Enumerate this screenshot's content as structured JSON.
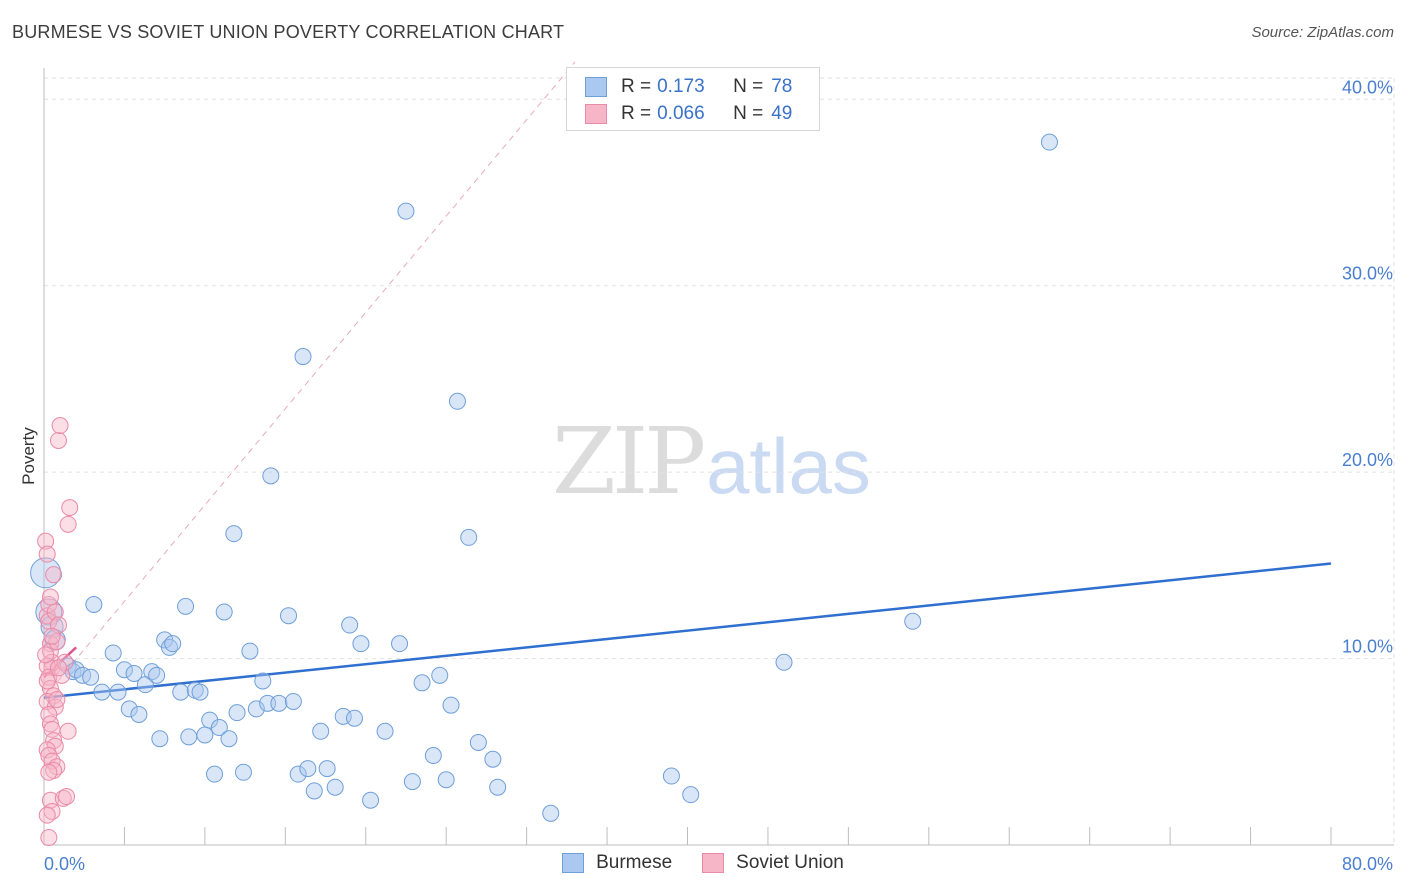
{
  "title": "BURMESE VS SOVIET UNION POVERTY CORRELATION CHART",
  "source": "Source: ZipAtlas.com",
  "watermark": {
    "zip": "ZIP",
    "atlas": "atlas"
  },
  "legend": {
    "rows": [
      {
        "r_label": "R =",
        "r_value": "0.173",
        "n_label": "N =",
        "n_value": "78"
      },
      {
        "r_label": "R =",
        "r_value": "0.066",
        "n_label": "N =",
        "n_value": "49"
      }
    ]
  },
  "bottom_legend": [
    "Burmese",
    "Soviet Union"
  ],
  "colors": {
    "burmese_fill": "#aac8f0",
    "burmese_stroke": "#6f9fd8",
    "burmese_line": "#2f6fcf",
    "soviet_fill": "#f7b5c8",
    "soviet_stroke": "#e98aa8",
    "soviet_line": "#e0508a",
    "tick_text": "#4a7fd0"
  },
  "chart_data": {
    "type": "scatter",
    "title": "BURMESE VS SOVIET UNION POVERTY CORRELATION CHART",
    "xlabel": "",
    "ylabel": "Poverty",
    "xlim": [
      0,
      80
    ],
    "ylim": [
      0,
      42
    ],
    "x_tick_labels": [
      "0.0%",
      "80.0%"
    ],
    "y_ticks": [
      10,
      20,
      30,
      40
    ],
    "y_tick_labels": [
      "10.0%",
      "20.0%",
      "30.0%",
      "40.0%"
    ],
    "grid": true,
    "legend_position": "top-center",
    "series": [
      {
        "name": "Burmese",
        "r": 0.173,
        "n": 78,
        "trend": [
          [
            0,
            7.9
          ],
          [
            80,
            15.1
          ]
        ],
        "points": [
          [
            0.1,
            14.6
          ],
          [
            0.3,
            12.5
          ],
          [
            0.5,
            11.7
          ],
          [
            0.7,
            11.0
          ],
          [
            1.5,
            9.6
          ],
          [
            1.8,
            9.3
          ],
          [
            2.0,
            9.4
          ],
          [
            2.4,
            9.1
          ],
          [
            2.9,
            9.0
          ],
          [
            3.1,
            12.9
          ],
          [
            3.6,
            8.2
          ],
          [
            4.3,
            10.3
          ],
          [
            4.6,
            8.2
          ],
          [
            5.0,
            9.4
          ],
          [
            5.3,
            7.3
          ],
          [
            5.6,
            9.2
          ],
          [
            5.9,
            7.0
          ],
          [
            6.3,
            8.6
          ],
          [
            6.7,
            9.3
          ],
          [
            7.0,
            9.1
          ],
          [
            7.2,
            5.7
          ],
          [
            7.5,
            11.0
          ],
          [
            7.8,
            10.6
          ],
          [
            8.0,
            10.8
          ],
          [
            8.5,
            8.2
          ],
          [
            8.8,
            12.8
          ],
          [
            9.0,
            5.8
          ],
          [
            9.4,
            8.3
          ],
          [
            9.7,
            8.2
          ],
          [
            10.0,
            5.9
          ],
          [
            10.3,
            6.7
          ],
          [
            10.6,
            3.8
          ],
          [
            10.9,
            6.3
          ],
          [
            11.2,
            12.5
          ],
          [
            11.5,
            5.7
          ],
          [
            11.8,
            16.7
          ],
          [
            12.0,
            7.1
          ],
          [
            12.4,
            3.9
          ],
          [
            12.8,
            10.4
          ],
          [
            13.2,
            7.3
          ],
          [
            13.6,
            8.8
          ],
          [
            13.9,
            7.6
          ],
          [
            14.1,
            19.8
          ],
          [
            14.6,
            7.6
          ],
          [
            15.2,
            12.3
          ],
          [
            15.5,
            7.7
          ],
          [
            15.8,
            3.8
          ],
          [
            16.1,
            26.2
          ],
          [
            16.4,
            4.1
          ],
          [
            16.8,
            2.9
          ],
          [
            17.2,
            6.1
          ],
          [
            17.6,
            4.1
          ],
          [
            18.1,
            3.1
          ],
          [
            18.6,
            6.9
          ],
          [
            19.3,
            6.8
          ],
          [
            19.0,
            11.8
          ],
          [
            19.7,
            10.8
          ],
          [
            20.3,
            2.4
          ],
          [
            21.2,
            6.1
          ],
          [
            22.1,
            10.8
          ],
          [
            22.9,
            3.4
          ],
          [
            22.5,
            34.0
          ],
          [
            23.5,
            8.7
          ],
          [
            24.2,
            4.8
          ],
          [
            24.6,
            9.1
          ],
          [
            25.0,
            3.5
          ],
          [
            25.3,
            7.5
          ],
          [
            25.7,
            23.8
          ],
          [
            26.4,
            16.5
          ],
          [
            27.0,
            5.5
          ],
          [
            27.9,
            4.6
          ],
          [
            28.2,
            3.1
          ],
          [
            31.5,
            1.7
          ],
          [
            39.0,
            3.7
          ],
          [
            40.2,
            2.7
          ],
          [
            46.0,
            9.8
          ],
          [
            54.0,
            12.0
          ],
          [
            62.5,
            37.7
          ]
        ]
      },
      {
        "name": "Soviet Union",
        "r": 0.066,
        "n": 49,
        "trend": [
          [
            0,
            9.0
          ],
          [
            2.0,
            10.6
          ]
        ],
        "points": [
          [
            0.1,
            16.3
          ],
          [
            0.2,
            15.6
          ],
          [
            0.2,
            12.3
          ],
          [
            0.3,
            12.9
          ],
          [
            0.3,
            12.0
          ],
          [
            0.4,
            10.8
          ],
          [
            0.4,
            10.4
          ],
          [
            0.5,
            9.8
          ],
          [
            0.5,
            9.5
          ],
          [
            0.2,
            9.6
          ],
          [
            0.3,
            9.0
          ],
          [
            0.4,
            8.4
          ],
          [
            0.6,
            8.0
          ],
          [
            0.2,
            7.7
          ],
          [
            0.7,
            7.4
          ],
          [
            0.3,
            7.0
          ],
          [
            0.4,
            6.5
          ],
          [
            0.5,
            6.2
          ],
          [
            0.6,
            5.6
          ],
          [
            0.7,
            5.3
          ],
          [
            0.2,
            5.1
          ],
          [
            0.3,
            4.8
          ],
          [
            0.5,
            4.5
          ],
          [
            0.8,
            4.2
          ],
          [
            0.6,
            4.0
          ],
          [
            0.4,
            2.4
          ],
          [
            0.5,
            1.8
          ],
          [
            0.3,
            0.4
          ],
          [
            0.7,
            12.5
          ],
          [
            0.9,
            11.8
          ],
          [
            1.1,
            9.1
          ],
          [
            0.8,
            10.9
          ],
          [
            0.9,
            21.7
          ],
          [
            1.0,
            22.5
          ],
          [
            1.5,
            17.2
          ],
          [
            1.6,
            18.1
          ],
          [
            1.2,
            2.5
          ],
          [
            1.4,
            2.6
          ],
          [
            1.5,
            6.1
          ],
          [
            1.3,
            9.8
          ],
          [
            0.1,
            10.2
          ],
          [
            0.2,
            8.8
          ],
          [
            0.3,
            3.9
          ],
          [
            0.6,
            14.5
          ],
          [
            0.5,
            11.2
          ],
          [
            0.9,
            9.5
          ],
          [
            0.4,
            13.3
          ],
          [
            0.8,
            7.8
          ],
          [
            0.2,
            1.6
          ]
        ]
      }
    ]
  }
}
